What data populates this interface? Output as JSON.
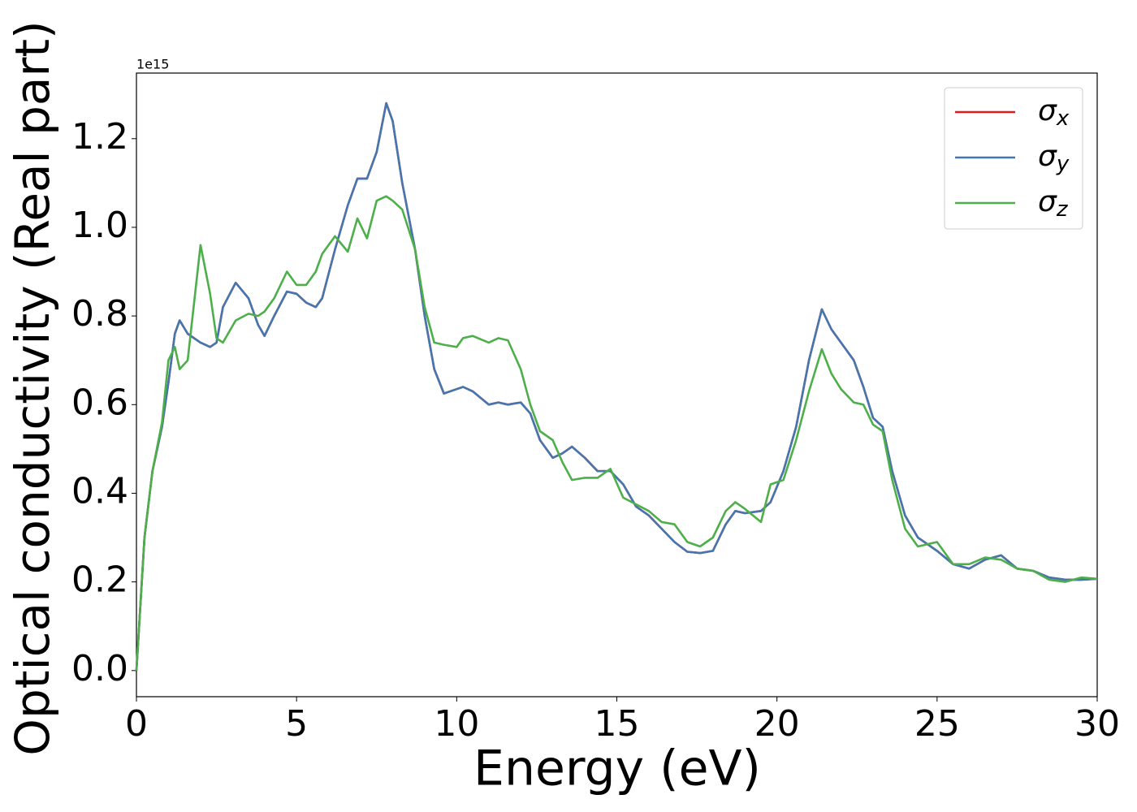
{
  "chart_data": {
    "type": "line",
    "xlabel": "Energy (eV)",
    "ylabel": "Optical conductivity (Real part)",
    "y_offset_label": "1e15",
    "x": [
      0,
      0.25,
      0.5,
      0.8,
      1.0,
      1.2,
      1.35,
      1.6,
      2.0,
      2.3,
      2.5,
      2.7,
      3.1,
      3.5,
      3.8,
      4.0,
      4.3,
      4.7,
      5.0,
      5.3,
      5.6,
      5.8,
      6.2,
      6.6,
      6.9,
      7.2,
      7.5,
      7.8,
      8.0,
      8.3,
      8.7,
      9.0,
      9.3,
      9.6,
      10.0,
      10.2,
      10.5,
      11.0,
      11.3,
      11.6,
      12.0,
      12.3,
      12.6,
      13.0,
      13.3,
      13.6,
      14.0,
      14.4,
      14.8,
      15.2,
      15.6,
      16.0,
      16.4,
      16.8,
      17.2,
      17.6,
      18.0,
      18.4,
      18.7,
      19.0,
      19.5,
      19.8,
      20.2,
      20.6,
      21.0,
      21.4,
      21.7,
      22.0,
      22.4,
      22.7,
      23.0,
      23.3,
      23.6,
      24.0,
      24.4,
      25.0,
      25.5,
      26.0,
      26.5,
      27.0,
      27.5,
      28.0,
      28.5,
      29.0,
      29.5,
      30.0
    ],
    "series": [
      {
        "name": "σx",
        "color": "#e41a1c",
        "values": [
          0,
          0.3,
          0.45,
          0.55,
          0.65,
          0.76,
          0.79,
          0.76,
          0.74,
          0.73,
          0.74,
          0.82,
          0.875,
          0.84,
          0.78,
          0.755,
          0.8,
          0.855,
          0.85,
          0.83,
          0.82,
          0.84,
          0.95,
          1.05,
          1.11,
          1.11,
          1.17,
          1.28,
          1.24,
          1.1,
          0.95,
          0.8,
          0.68,
          0.625,
          0.635,
          0.64,
          0.63,
          0.6,
          0.605,
          0.6,
          0.605,
          0.58,
          0.52,
          0.48,
          0.49,
          0.505,
          0.48,
          0.45,
          0.45,
          0.42,
          0.37,
          0.35,
          0.32,
          0.29,
          0.268,
          0.265,
          0.27,
          0.33,
          0.36,
          0.355,
          0.36,
          0.38,
          0.45,
          0.55,
          0.7,
          0.815,
          0.77,
          0.74,
          0.7,
          0.64,
          0.57,
          0.55,
          0.45,
          0.35,
          0.3,
          0.27,
          0.24,
          0.23,
          0.25,
          0.26,
          0.23,
          0.225,
          0.21,
          0.205,
          0.205,
          0.207
        ]
      },
      {
        "name": "σy",
        "color": "#4477b0",
        "values": [
          0,
          0.3,
          0.45,
          0.55,
          0.65,
          0.76,
          0.79,
          0.76,
          0.74,
          0.73,
          0.74,
          0.82,
          0.875,
          0.84,
          0.78,
          0.755,
          0.8,
          0.855,
          0.85,
          0.83,
          0.82,
          0.84,
          0.95,
          1.05,
          1.11,
          1.11,
          1.17,
          1.28,
          1.24,
          1.1,
          0.95,
          0.8,
          0.68,
          0.625,
          0.635,
          0.64,
          0.63,
          0.6,
          0.605,
          0.6,
          0.605,
          0.58,
          0.52,
          0.48,
          0.49,
          0.505,
          0.48,
          0.45,
          0.45,
          0.42,
          0.37,
          0.35,
          0.32,
          0.29,
          0.268,
          0.265,
          0.27,
          0.33,
          0.36,
          0.355,
          0.36,
          0.38,
          0.45,
          0.55,
          0.7,
          0.815,
          0.77,
          0.74,
          0.7,
          0.64,
          0.57,
          0.55,
          0.45,
          0.35,
          0.3,
          0.27,
          0.24,
          0.23,
          0.25,
          0.26,
          0.23,
          0.225,
          0.21,
          0.205,
          0.205,
          0.207
        ]
      },
      {
        "name": "σz",
        "color": "#4daf4a",
        "values": [
          0,
          0.3,
          0.45,
          0.56,
          0.7,
          0.73,
          0.68,
          0.7,
          0.96,
          0.85,
          0.75,
          0.74,
          0.79,
          0.805,
          0.8,
          0.81,
          0.84,
          0.9,
          0.87,
          0.87,
          0.9,
          0.94,
          0.98,
          0.945,
          1.02,
          0.975,
          1.06,
          1.07,
          1.06,
          1.04,
          0.95,
          0.82,
          0.74,
          0.735,
          0.73,
          0.75,
          0.755,
          0.74,
          0.75,
          0.745,
          0.68,
          0.6,
          0.54,
          0.52,
          0.47,
          0.43,
          0.435,
          0.435,
          0.455,
          0.39,
          0.375,
          0.36,
          0.335,
          0.33,
          0.29,
          0.28,
          0.3,
          0.36,
          0.38,
          0.365,
          0.335,
          0.42,
          0.43,
          0.52,
          0.63,
          0.725,
          0.67,
          0.635,
          0.605,
          0.6,
          0.555,
          0.54,
          0.43,
          0.32,
          0.28,
          0.29,
          0.24,
          0.24,
          0.255,
          0.25,
          0.23,
          0.225,
          0.205,
          0.2,
          0.21,
          0.207
        ]
      }
    ],
    "xlim": [
      0,
      30
    ],
    "xticks": [
      0,
      5,
      10,
      15,
      20,
      25,
      30
    ],
    "ylim": [
      -0.059,
      1.348
    ],
    "yticks": [
      {
        "value": 0,
        "label": "0.0"
      },
      0.2,
      0.4,
      0.6,
      0.8,
      {
        "value": 1,
        "label": "1.0"
      },
      1.2
    ],
    "legend": "upper right",
    "grid": false
  }
}
